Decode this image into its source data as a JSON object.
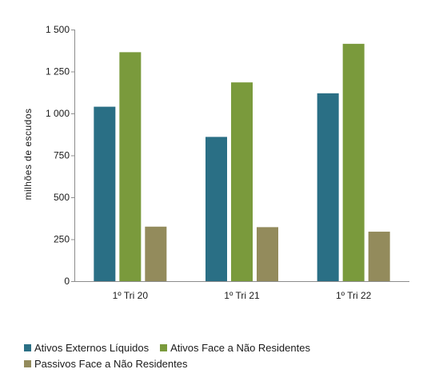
{
  "chart_data": {
    "type": "bar",
    "title": "",
    "xlabel": "",
    "ylabel": "milhões de escudos",
    "categories": [
      "1º Tri 20",
      "1º Tri 21",
      "1º Tri 22"
    ],
    "ylim": [
      0,
      1500
    ],
    "yticks": [
      0,
      250,
      500,
      750,
      1000,
      1250,
      1500
    ],
    "ytick_labels": [
      "0",
      "250",
      "500",
      "750",
      "1 000",
      "1 250",
      "1 500"
    ],
    "grid": false,
    "legend_position": "bottom",
    "series": [
      {
        "name": "Ativos Externos Líquidos",
        "color": "#2a6f85",
        "values": [
          1040,
          860,
          1120
        ]
      },
      {
        "name": "Ativos Face a Não Residentes",
        "color": "#7a9a3c",
        "values": [
          1365,
          1185,
          1415
        ]
      },
      {
        "name": "Passivos Face a Não Residentes",
        "color": "#938b5c",
        "values": [
          325,
          322,
          295
        ]
      }
    ]
  }
}
